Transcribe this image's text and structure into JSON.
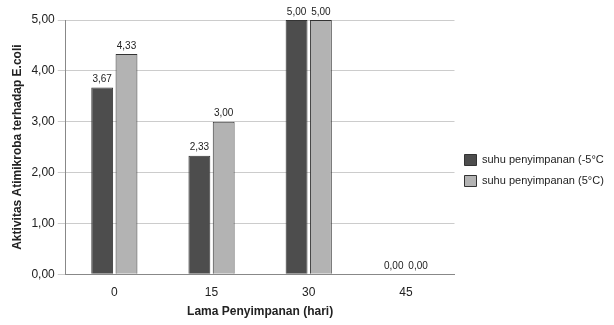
{
  "chart_data": {
    "type": "bar",
    "categories": [
      "0",
      "15",
      "30",
      "45"
    ],
    "series": [
      {
        "name": "suhu penyimpanan (-5°C)",
        "color": "#4d4d4d",
        "values": [
          3.67,
          2.33,
          5.0,
          0.0
        ],
        "value_labels": [
          "3,67",
          "2,33",
          "5,00",
          "0,00"
        ]
      },
      {
        "name": "suhu penyimpanan (5°C)",
        "color": "#b3b3b3",
        "values": [
          4.33,
          3.0,
          5.0,
          0.0
        ],
        "value_labels": [
          "4,33",
          "3,00",
          "5,00",
          "0,00"
        ]
      }
    ],
    "x_label": "Lama Penyimpanan (hari)",
    "y_label": "Aktivitas Atimikroba terhadap E.coli",
    "ylim": [
      0,
      5
    ],
    "yticks": [
      {
        "value": 0,
        "label": "0,00"
      },
      {
        "value": 1,
        "label": "1,00"
      },
      {
        "value": 2,
        "label": "2,00"
      },
      {
        "value": 3,
        "label": "3,00"
      },
      {
        "value": 4,
        "label": "4,00"
      },
      {
        "value": 5,
        "label": "5,00"
      }
    ],
    "grid": true,
    "legend": "right",
    "data_labels": true
  }
}
